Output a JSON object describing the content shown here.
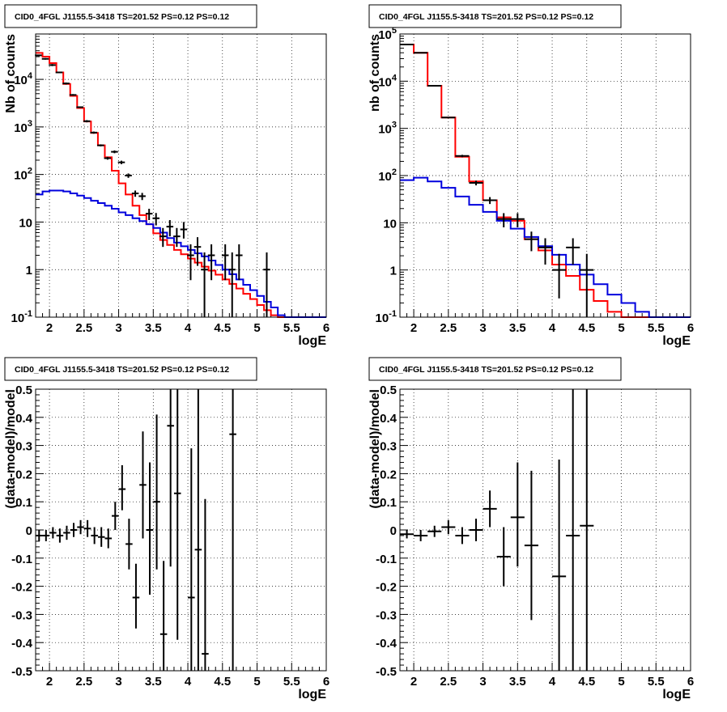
{
  "chart_data": [
    {
      "type": "step-histogram",
      "title": "CID0_4FGL J1155.5-3418 TS=201.52 PS=0.12 PS=0.12",
      "xlabel": "logE",
      "ylabel": "Nb of counts",
      "xlim": [
        1.8,
        6
      ],
      "ylim": [
        0.1,
        90000
      ],
      "y_log": true,
      "grid": true,
      "x_ticks": [
        "2",
        "2.5",
        "3",
        "3.5",
        "4",
        "4.5",
        "5",
        "5.5",
        "6"
      ],
      "y_ticks": [
        "10^-1",
        "1",
        "10",
        "10^2",
        "10^3",
        "10^4"
      ],
      "bin_edges": [
        1.8,
        1.9,
        2.0,
        2.1,
        2.2,
        2.3,
        2.4,
        2.5,
        2.6,
        2.7,
        2.8,
        2.9,
        3.0,
        3.1,
        3.2,
        3.3,
        3.4,
        3.5,
        3.6,
        3.7,
        3.8,
        3.9,
        4.0,
        4.1,
        4.2,
        4.3,
        4.4,
        4.5,
        4.6,
        4.7,
        4.8,
        4.9,
        5.0,
        5.1,
        5.2,
        5.3,
        5.4,
        5.5,
        5.6,
        5.7,
        5.8,
        5.9,
        6.0
      ],
      "series": [
        {
          "color": "#ff0000",
          "values": [
            36000,
            30000,
            22000,
            14000,
            8000,
            4500,
            2500,
            1300,
            750,
            410,
            230,
            120,
            65,
            38,
            22,
            14,
            9,
            5.8,
            4.2,
            3.3,
            2.6,
            2.1,
            1.7,
            1.4,
            1.15,
            0.95,
            0.78,
            0.62,
            0.5,
            0.4,
            0.31,
            0.24,
            0.18,
            0.14,
            0.11,
            0.09,
            0.09,
            0.09,
            0.09,
            0.09,
            0.09,
            0.09
          ]
        },
        {
          "color": "#0000dd",
          "values": [
            38,
            44,
            46,
            46,
            44,
            40,
            36,
            32,
            28,
            25,
            22,
            19,
            16,
            14,
            12,
            10.5,
            9,
            7.5,
            6,
            4.6,
            3.7,
            3.1,
            2.6,
            2.2,
            1.9,
            1.55,
            1.25,
            1.0,
            0.8,
            0.62,
            0.48,
            0.37,
            0.28,
            0.21,
            0.16,
            0.11,
            0.1,
            0.1,
            0.1,
            0.1,
            0.1,
            0.1
          ]
        }
      ],
      "points": [
        {
          "x": 1.84,
          "y": 32000,
          "ylo": 31000,
          "yhi": 33000
        },
        {
          "x": 1.94,
          "y": 27000,
          "ylo": 26000,
          "yhi": 28000
        },
        {
          "x": 2.04,
          "y": 20000,
          "ylo": 19000,
          "yhi": 21000
        },
        {
          "x": 2.14,
          "y": 14000,
          "ylo": 13500,
          "yhi": 14500
        },
        {
          "x": 2.24,
          "y": 8200,
          "ylo": 7800,
          "yhi": 8600
        },
        {
          "x": 2.34,
          "y": 4700,
          "ylo": 4500,
          "yhi": 4900
        },
        {
          "x": 2.44,
          "y": 2600,
          "ylo": 2500,
          "yhi": 2700
        },
        {
          "x": 2.54,
          "y": 1320,
          "ylo": 1250,
          "yhi": 1390
        },
        {
          "x": 2.64,
          "y": 760,
          "ylo": 720,
          "yhi": 800
        },
        {
          "x": 2.74,
          "y": 410,
          "ylo": 390,
          "yhi": 430
        },
        {
          "x": 2.84,
          "y": 220,
          "ylo": 205,
          "yhi": 235
        },
        {
          "x": 2.94,
          "y": 300,
          "ylo": 280,
          "yhi": 320
        },
        {
          "x": 3.04,
          "y": 180,
          "ylo": 165,
          "yhi": 195
        },
        {
          "x": 3.14,
          "y": 95,
          "ylo": 85,
          "yhi": 105
        },
        {
          "x": 3.24,
          "y": 40,
          "ylo": 34,
          "yhi": 46
        },
        {
          "x": 3.34,
          "y": 35,
          "ylo": 29,
          "yhi": 41
        },
        {
          "x": 3.44,
          "y": 15,
          "ylo": 11,
          "yhi": 19
        },
        {
          "x": 3.54,
          "y": 12,
          "ylo": 8.5,
          "yhi": 15.5
        },
        {
          "x": 3.64,
          "y": 5,
          "ylo": 3,
          "yhi": 7.5
        },
        {
          "x": 3.74,
          "y": 8,
          "ylo": 5,
          "yhi": 11
        },
        {
          "x": 3.84,
          "y": 5,
          "ylo": 3,
          "yhi": 7.5
        },
        {
          "x": 3.94,
          "y": 7,
          "ylo": 4.5,
          "yhi": 10
        },
        {
          "x": 4.04,
          "y": 2,
          "ylo": 0.6,
          "yhi": 3.4
        },
        {
          "x": 4.14,
          "y": 3,
          "ylo": 1.2,
          "yhi": 4.8
        },
        {
          "x": 4.24,
          "y": 1,
          "ylo": 0.1,
          "yhi": 2.3
        },
        {
          "x": 4.34,
          "y": 2,
          "ylo": 0.6,
          "yhi": 3.4
        },
        {
          "x": 4.54,
          "y": 2,
          "ylo": 0.6,
          "yhi": 3.4
        },
        {
          "x": 4.64,
          "y": 1,
          "ylo": 0.1,
          "yhi": 2.3
        },
        {
          "x": 4.74,
          "y": 2,
          "ylo": 0.6,
          "yhi": 3.4
        },
        {
          "x": 5.14,
          "y": 1,
          "ylo": 0.1,
          "yhi": 2.3
        }
      ]
    },
    {
      "type": "step-histogram",
      "title": "CID0_4FGL J1155.5-3418 TS=201.52 PS=0.12 PS=0.12",
      "xlabel": "logE",
      "ylabel": "nb of counts",
      "xlim": [
        1.8,
        6
      ],
      "ylim": [
        0.1,
        100000
      ],
      "y_log": true,
      "grid": true,
      "x_ticks": [
        "2",
        "2.5",
        "3",
        "3.5",
        "4",
        "4.5",
        "5",
        "5.5",
        "6"
      ],
      "y_ticks": [
        "10^-1",
        "1",
        "10",
        "10^2",
        "10^3",
        "10^4",
        "10^5"
      ],
      "bin_edges": [
        1.8,
        2.0,
        2.2,
        2.4,
        2.6,
        2.8,
        3.0,
        3.2,
        3.4,
        3.6,
        3.8,
        4.0,
        4.2,
        4.4,
        4.6,
        4.8,
        5.0,
        5.2,
        5.4,
        5.6,
        5.8,
        6.0
      ],
      "series": [
        {
          "color": "#ff0000",
          "values": [
            60000,
            40000,
            8000,
            1700,
            250,
            75,
            30,
            13,
            11,
            4.5,
            2.6,
            1.3,
            0.75,
            0.38,
            0.22,
            0.13,
            0.1,
            0.1,
            0.1,
            0.1,
            0.1
          ]
        },
        {
          "color": "#0000dd",
          "values": [
            80,
            90,
            75,
            55,
            36,
            24,
            17,
            11,
            7.5,
            5,
            3.2,
            2.1,
            1.3,
            0.8,
            0.5,
            0.3,
            0.2,
            0.13,
            0.1,
            0.1,
            0.1
          ]
        }
      ],
      "points": [
        {
          "x": 1.9,
          "y": 60000,
          "ylo": 59000,
          "yhi": 61000
        },
        {
          "x": 2.1,
          "y": 40000,
          "ylo": 39000,
          "yhi": 41000
        },
        {
          "x": 2.3,
          "y": 8000,
          "ylo": 7800,
          "yhi": 8200
        },
        {
          "x": 2.5,
          "y": 1700,
          "ylo": 1650,
          "yhi": 1750
        },
        {
          "x": 2.7,
          "y": 260,
          "ylo": 245,
          "yhi": 275
        },
        {
          "x": 2.9,
          "y": 70,
          "ylo": 62,
          "yhi": 78
        },
        {
          "x": 3.1,
          "y": 30,
          "ylo": 25,
          "yhi": 35
        },
        {
          "x": 3.3,
          "y": 12,
          "ylo": 8,
          "yhi": 16
        },
        {
          "x": 3.5,
          "y": 12,
          "ylo": 8,
          "yhi": 16
        },
        {
          "x": 3.7,
          "y": 4.5,
          "ylo": 2.5,
          "yhi": 6.5
        },
        {
          "x": 3.9,
          "y": 3,
          "ylo": 1.3,
          "yhi": 4.7
        },
        {
          "x": 4.1,
          "y": 1,
          "ylo": 0.25,
          "yhi": 2.2
        },
        {
          "x": 4.3,
          "y": 3,
          "ylo": 1.3,
          "yhi": 4.7
        },
        {
          "x": 4.5,
          "y": 1,
          "ylo": 0.1,
          "yhi": 2.2
        }
      ]
    },
    {
      "type": "scatter-errorbar",
      "title": "CID0_4FGL J1155.5-3418 TS=201.52 PS=0.12 PS=0.12",
      "xlabel": "logE",
      "ylabel": "(data-model)/model",
      "xlim": [
        1.8,
        6
      ],
      "ylim": [
        -0.5,
        0.5
      ],
      "grid": true,
      "x_ticks": [
        "2",
        "2.5",
        "3",
        "3.5",
        "4",
        "4.5",
        "5",
        "5.5",
        "6"
      ],
      "y_ticks": [
        "-0.5",
        "-0.4",
        "-0.3",
        "-0.2",
        "-0.1",
        "0",
        "0.1",
        "0.2",
        "0.3",
        "0.4",
        "0.5"
      ],
      "points": [
        {
          "x": 1.85,
          "y": -0.02,
          "ylo": -0.04,
          "yhi": 0.0
        },
        {
          "x": 1.95,
          "y": -0.02,
          "ylo": -0.04,
          "yhi": 0.0
        },
        {
          "x": 2.05,
          "y": -0.01,
          "ylo": -0.03,
          "yhi": 0.01
        },
        {
          "x": 2.15,
          "y": -0.02,
          "ylo": -0.045,
          "yhi": 0.005
        },
        {
          "x": 2.25,
          "y": -0.01,
          "ylo": -0.035,
          "yhi": 0.015
        },
        {
          "x": 2.35,
          "y": 0.0,
          "ylo": -0.025,
          "yhi": 0.025
        },
        {
          "x": 2.45,
          "y": 0.01,
          "ylo": -0.015,
          "yhi": 0.035
        },
        {
          "x": 2.55,
          "y": 0.005,
          "ylo": -0.025,
          "yhi": 0.035
        },
        {
          "x": 2.65,
          "y": -0.02,
          "ylo": -0.05,
          "yhi": 0.01
        },
        {
          "x": 2.75,
          "y": -0.025,
          "ylo": -0.06,
          "yhi": 0.01
        },
        {
          "x": 2.85,
          "y": -0.03,
          "ylo": -0.065,
          "yhi": 0.005
        },
        {
          "x": 2.95,
          "y": 0.05,
          "ylo": 0.0,
          "yhi": 0.1
        },
        {
          "x": 3.05,
          "y": 0.145,
          "ylo": 0.07,
          "yhi": 0.23
        },
        {
          "x": 3.15,
          "y": -0.05,
          "ylo": -0.14,
          "yhi": 0.04
        },
        {
          "x": 3.25,
          "y": -0.24,
          "ylo": -0.35,
          "yhi": -0.12
        },
        {
          "x": 3.35,
          "y": 0.16,
          "ylo": -0.03,
          "yhi": 0.35
        },
        {
          "x": 3.45,
          "y": 0.0,
          "ylo": -0.23,
          "yhi": 0.24
        },
        {
          "x": 3.55,
          "y": 0.1,
          "ylo": -0.14,
          "yhi": 0.41
        },
        {
          "x": 3.65,
          "y": -0.37,
          "ylo": -0.5,
          "yhi": -0.11
        },
        {
          "x": 3.75,
          "y": 0.37,
          "ylo": -0.13,
          "yhi": 0.5
        },
        {
          "x": 3.85,
          "y": 0.13,
          "ylo": -0.39,
          "yhi": 0.5
        },
        {
          "x": 4.05,
          "y": -0.24,
          "ylo": -0.5,
          "yhi": 0.29
        },
        {
          "x": 4.15,
          "y": -0.07,
          "ylo": -0.5,
          "yhi": 0.5
        },
        {
          "x": 4.25,
          "y": -0.44,
          "ylo": -0.5,
          "yhi": 0.11
        },
        {
          "x": 4.65,
          "y": 0.34,
          "ylo": -0.5,
          "yhi": 0.5
        }
      ]
    },
    {
      "type": "scatter-errorbar",
      "title": "CID0_4FGL J1155.5-3418 TS=201.52 PS=0.12 PS=0.12",
      "xlabel": "logE",
      "ylabel": "(data-model)/model",
      "xlim": [
        1.8,
        6
      ],
      "ylim": [
        -0.5,
        0.5
      ],
      "grid": true,
      "x_ticks": [
        "2",
        "2.5",
        "3",
        "3.5",
        "4",
        "4.5",
        "5",
        "5.5",
        "6"
      ],
      "y_ticks": [
        "-0.5",
        "-0.4",
        "-0.3",
        "-0.2",
        "-0.1",
        "0",
        "0.1",
        "0.2",
        "0.3",
        "0.4",
        "0.5"
      ],
      "points": [
        {
          "x": 1.9,
          "y": -0.015,
          "ylo": -0.03,
          "yhi": 0.0
        },
        {
          "x": 2.1,
          "y": -0.02,
          "ylo": -0.04,
          "yhi": 0.0
        },
        {
          "x": 2.3,
          "y": -0.005,
          "ylo": -0.025,
          "yhi": 0.015
        },
        {
          "x": 2.5,
          "y": 0.01,
          "ylo": -0.015,
          "yhi": 0.035
        },
        {
          "x": 2.7,
          "y": -0.02,
          "ylo": -0.05,
          "yhi": 0.01
        },
        {
          "x": 2.9,
          "y": 0.0,
          "ylo": -0.04,
          "yhi": 0.04
        },
        {
          "x": 3.1,
          "y": 0.075,
          "ylo": 0.01,
          "yhi": 0.14
        },
        {
          "x": 3.3,
          "y": -0.095,
          "ylo": -0.2,
          "yhi": 0.01
        },
        {
          "x": 3.5,
          "y": 0.045,
          "ylo": -0.13,
          "yhi": 0.24
        },
        {
          "x": 3.7,
          "y": -0.055,
          "ylo": -0.32,
          "yhi": 0.21
        },
        {
          "x": 4.1,
          "y": -0.165,
          "ylo": -0.5,
          "yhi": 0.25
        },
        {
          "x": 4.3,
          "y": -0.02,
          "ylo": -0.5,
          "yhi": 0.5
        },
        {
          "x": 4.5,
          "y": 0.015,
          "ylo": -0.5,
          "yhi": 0.5
        }
      ]
    }
  ]
}
